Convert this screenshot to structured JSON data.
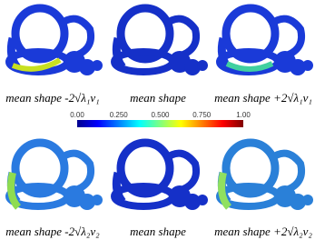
{
  "captions": {
    "top": [
      "mean shape -2√λ₁v₁",
      "mean shape",
      "mean shape +2√λ₁v₁"
    ],
    "bottom": [
      "mean shape -2√λ₂v₂",
      "mean shape",
      "mean shape +2√λ₂v₂"
    ]
  },
  "colorbar": {
    "ticks": [
      "0.00",
      "0.250",
      "0.500",
      "0.750",
      "1.00"
    ]
  }
}
